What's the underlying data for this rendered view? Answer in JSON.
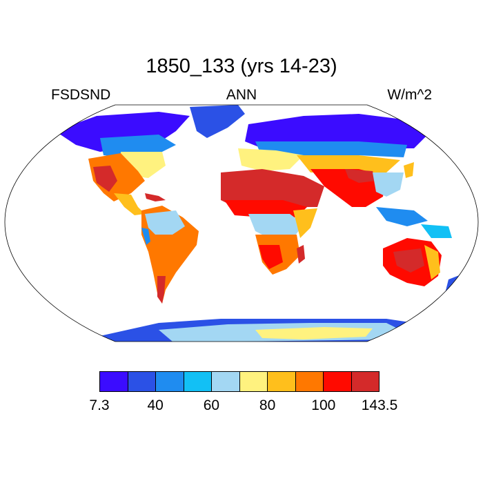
{
  "title": "1850_133 (yrs 14-23)",
  "variable": "FSDSND",
  "season": "ANN",
  "units": "W/m^2",
  "colorbar": {
    "colors": [
      "#3b0cff",
      "#2b51e6",
      "#1f8cf0",
      "#12c0f5",
      "#a3d7f3",
      "#fff27f",
      "#ffbf1c",
      "#ff7800",
      "#ff0a00",
      "#d42a2a"
    ],
    "tick_labels": [
      "7.3",
      "40",
      "60",
      "80",
      "100",
      "143.5"
    ],
    "tick_box_index": [
      0,
      2,
      4,
      6,
      8,
      10
    ]
  },
  "map_regions": [
    {
      "name": "greenland",
      "color": "#2b51e6"
    },
    {
      "name": "north-america-arctic",
      "color": "#3b0cff"
    },
    {
      "name": "north-america-south",
      "color": "#ff7800"
    },
    {
      "name": "south-america",
      "color": "#ff7800"
    },
    {
      "name": "amazon",
      "color": "#a3d7f3"
    },
    {
      "name": "eurasia-north",
      "color": "#2b51e6"
    },
    {
      "name": "europe",
      "color": "#fff27f"
    },
    {
      "name": "sahara-arabia",
      "color": "#d42a2a"
    },
    {
      "name": "central-africa",
      "color": "#a3d7f3"
    },
    {
      "name": "southern-africa",
      "color": "#ff7800"
    },
    {
      "name": "south-asia",
      "color": "#ff0a00"
    },
    {
      "name": "east-asia",
      "color": "#a3d7f3"
    },
    {
      "name": "australia",
      "color": "#ff0a00"
    },
    {
      "name": "antarctica",
      "color": "#a3d7f3"
    }
  ]
}
